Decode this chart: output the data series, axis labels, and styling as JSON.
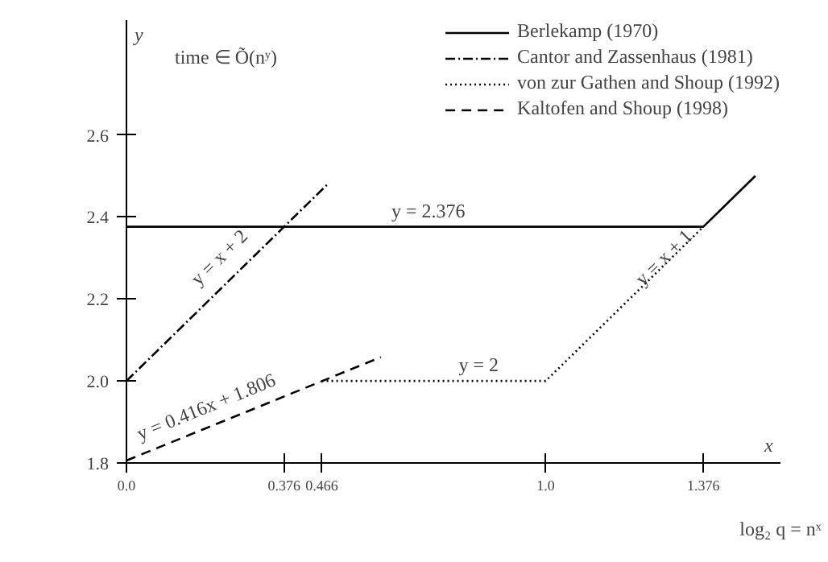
{
  "chart_data": {
    "type": "line",
    "xlabel": "x",
    "ylabel": "y",
    "xlim": [
      0,
      1.56
    ],
    "ylim": [
      1.8,
      2.88
    ],
    "xticks": [
      {
        "value": 0,
        "label": "0.0"
      },
      0.376,
      0.466,
      {
        "value": 1,
        "label": "1.0"
      },
      1.376
    ],
    "yticks": [
      1.8,
      {
        "value": 2,
        "label": "2.0"
      },
      2.2,
      2.4,
      2.6
    ],
    "grid": false,
    "legend": "top right",
    "marker": "none",
    "series": [
      {
        "name": "Berlekamp (1970)",
        "color": "#000000",
        "line_style": "solid",
        "x": [
          0,
          1.376,
          1.5
        ],
        "values": [
          2.376,
          2.376,
          2.5
        ]
      },
      {
        "name": "Cantor and Zassenhaus (1981)",
        "color": "#000000",
        "line_style": "dashdot",
        "x": [
          0,
          0.48
        ],
        "values": [
          2.0,
          2.48
        ]
      },
      {
        "name": "von zur Gathen and Shoup (1992)",
        "color": "#000000",
        "line_style": "dotted",
        "x": [
          0.466,
          1.0,
          1.376
        ],
        "values": [
          2.0,
          2.0,
          2.376
        ]
      },
      {
        "name": "Kaltofen and Shoup (1998)",
        "color": "#000000",
        "line_style": "dashed",
        "x": [
          0,
          0.607
        ],
        "values": [
          1.806,
          2.058
        ]
      }
    ],
    "annotations": [
      "time ∈ Õ(nʸ)",
      {
        "text": "y = 2.376",
        "x": 0.72,
        "y": 2.376
      },
      {
        "text": "y = x + 2",
        "x": 0.24,
        "y": 2.27
      },
      {
        "text": "y = 0.416x + 1.806",
        "x": 0.2,
        "y": 1.9
      },
      {
        "text": "y = 2",
        "x": 0.84,
        "y": 2.0
      },
      {
        "text": "y = x + 1",
        "x": 1.3,
        "y": 2.27
      },
      "log₂ q = nˣ"
    ]
  }
}
